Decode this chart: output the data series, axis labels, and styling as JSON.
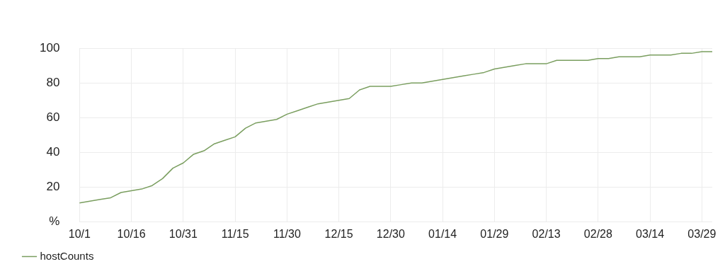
{
  "chart_data": {
    "type": "line",
    "categories": [
      "10/1",
      null,
      null,
      null,
      null,
      "10/16",
      null,
      null,
      null,
      null,
      "10/31",
      null,
      null,
      null,
      null,
      "11/15",
      null,
      null,
      null,
      null,
      "11/30",
      null,
      null,
      null,
      null,
      "12/15",
      null,
      null,
      null,
      null,
      "12/30",
      null,
      null,
      null,
      null,
      "01/14",
      null,
      null,
      null,
      null,
      "01/29",
      null,
      null,
      null,
      null,
      "02/13",
      null,
      null,
      null,
      null,
      "02/28",
      null,
      null,
      null,
      null,
      "03/14",
      null,
      null,
      null,
      null,
      "03/29",
      null
    ],
    "series": [
      {
        "name": "hostCounts",
        "color": "#7a9e5f",
        "values": [
          11,
          12,
          13,
          14,
          17,
          18,
          19,
          21,
          25,
          31,
          34,
          39,
          41,
          45,
          47,
          49,
          54,
          57,
          58,
          59,
          62,
          64,
          66,
          68,
          69,
          70,
          71,
          76,
          78,
          78,
          78,
          79,
          80,
          80,
          81,
          82,
          83,
          84,
          85,
          86,
          88,
          89,
          90,
          91,
          91,
          91,
          93,
          93,
          93,
          93,
          94,
          94,
          95,
          95,
          95,
          96,
          96,
          96,
          97,
          97,
          98,
          98
        ]
      }
    ],
    "ylim": [
      0,
      100
    ],
    "yticks": [
      {
        "value": 0,
        "label": "%"
      },
      20,
      40,
      60,
      80,
      100
    ],
    "grid": true,
    "legend": "bottom left",
    "marker": "none",
    "line_style": "solid"
  }
}
